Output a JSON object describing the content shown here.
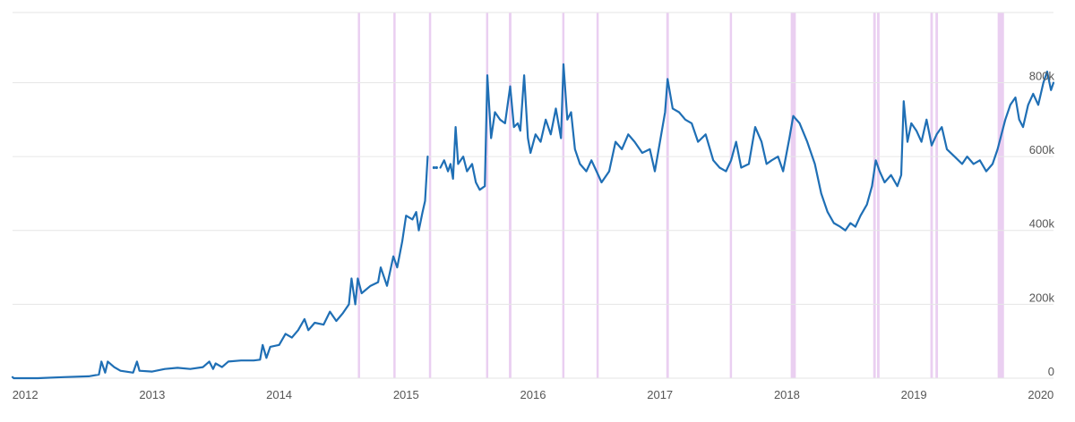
{
  "chart_data": {
    "type": "line",
    "title": "",
    "xlabel": "",
    "ylabel": "",
    "x_ticks": [
      "2012",
      "2013",
      "2014",
      "2015",
      "2016",
      "2017",
      "2018",
      "2019",
      "2020"
    ],
    "y_ticks": [
      "0",
      "200k",
      "400k",
      "600k",
      "800k"
    ],
    "y_tick_values": [
      0,
      200000,
      400000,
      600000,
      800000
    ],
    "xlim": [
      2011.9,
      2020.1
    ],
    "ylim": [
      0,
      990000
    ],
    "grid": "horizontal",
    "legend": "none",
    "colors": {
      "series": "#1f6fb5",
      "event_band": "#d9a8e6",
      "grid": "#e6e6e6"
    },
    "event_bands": [
      [
        2014.62,
        2014.63
      ],
      [
        2014.9,
        2014.91
      ],
      [
        2015.18,
        2015.19
      ],
      [
        2015.63,
        2015.64
      ],
      [
        2015.81,
        2015.83
      ],
      [
        2016.23,
        2016.24
      ],
      [
        2016.5,
        2016.51
      ],
      [
        2017.05,
        2017.07
      ],
      [
        2017.55,
        2017.56
      ],
      [
        2018.03,
        2018.07
      ],
      [
        2018.68,
        2018.7
      ],
      [
        2018.71,
        2018.73
      ],
      [
        2019.13,
        2019.15
      ],
      [
        2019.17,
        2019.19
      ],
      [
        2019.66,
        2019.71
      ]
    ],
    "series": [
      {
        "segments": [
          [
            [
              2011.9,
              3000
            ],
            [
              2011.91,
              0
            ],
            [
              2012.1,
              0
            ],
            [
              2012.3,
              3000
            ],
            [
              2012.5,
              5000
            ],
            [
              2012.58,
              10000
            ],
            [
              2012.6,
              45000
            ],
            [
              2012.63,
              15000
            ],
            [
              2012.65,
              45000
            ],
            [
              2012.7,
              30000
            ],
            [
              2012.75,
              20000
            ],
            [
              2012.85,
              15000
            ],
            [
              2012.88,
              45000
            ],
            [
              2012.9,
              20000
            ],
            [
              2013.0,
              18000
            ],
            [
              2013.1,
              25000
            ],
            [
              2013.2,
              28000
            ],
            [
              2013.3,
              25000
            ],
            [
              2013.4,
              30000
            ],
            [
              2013.45,
              45000
            ],
            [
              2013.48,
              25000
            ],
            [
              2013.5,
              40000
            ],
            [
              2013.55,
              30000
            ],
            [
              2013.6,
              45000
            ],
            [
              2013.7,
              48000
            ],
            [
              2013.8,
              48000
            ],
            [
              2013.85,
              50000
            ],
            [
              2013.87,
              90000
            ],
            [
              2013.9,
              55000
            ],
            [
              2013.93,
              85000
            ],
            [
              2014.0,
              90000
            ],
            [
              2014.05,
              120000
            ],
            [
              2014.1,
              110000
            ],
            [
              2014.15,
              130000
            ],
            [
              2014.2,
              160000
            ],
            [
              2014.23,
              130000
            ],
            [
              2014.28,
              150000
            ],
            [
              2014.35,
              145000
            ],
            [
              2014.4,
              180000
            ],
            [
              2014.45,
              155000
            ],
            [
              2014.5,
              175000
            ],
            [
              2014.55,
              200000
            ],
            [
              2014.57,
              270000
            ],
            [
              2014.6,
              200000
            ],
            [
              2014.62,
              270000
            ],
            [
              2014.65,
              230000
            ],
            [
              2014.72,
              250000
            ],
            [
              2014.78,
              260000
            ],
            [
              2014.8,
              300000
            ],
            [
              2014.85,
              250000
            ],
            [
              2014.9,
              330000
            ],
            [
              2014.93,
              300000
            ],
            [
              2014.97,
              370000
            ],
            [
              2015.0,
              440000
            ],
            [
              2015.05,
              430000
            ],
            [
              2015.08,
              450000
            ],
            [
              2015.1,
              400000
            ],
            [
              2015.13,
              450000
            ],
            [
              2015.15,
              480000
            ],
            [
              2015.17,
              600000
            ]
          ],
          [
            [
              2015.27,
              570000
            ],
            [
              2015.3,
              590000
            ],
            [
              2015.33,
              560000
            ],
            [
              2015.35,
              580000
            ],
            [
              2015.37,
              540000
            ],
            [
              2015.39,
              680000
            ],
            [
              2015.41,
              580000
            ],
            [
              2015.45,
              600000
            ],
            [
              2015.48,
              560000
            ],
            [
              2015.52,
              580000
            ],
            [
              2015.55,
              530000
            ],
            [
              2015.58,
              510000
            ],
            [
              2015.62,
              520000
            ],
            [
              2015.64,
              820000
            ],
            [
              2015.67,
              650000
            ],
            [
              2015.7,
              720000
            ],
            [
              2015.74,
              700000
            ],
            [
              2015.78,
              690000
            ],
            [
              2015.82,
              790000
            ],
            [
              2015.85,
              680000
            ],
            [
              2015.88,
              690000
            ],
            [
              2015.9,
              670000
            ],
            [
              2015.93,
              820000
            ],
            [
              2015.96,
              650000
            ],
            [
              2015.98,
              610000
            ],
            [
              2016.02,
              660000
            ],
            [
              2016.06,
              640000
            ],
            [
              2016.1,
              700000
            ],
            [
              2016.14,
              660000
            ],
            [
              2016.18,
              730000
            ],
            [
              2016.22,
              650000
            ],
            [
              2016.24,
              850000
            ],
            [
              2016.27,
              700000
            ],
            [
              2016.3,
              720000
            ],
            [
              2016.33,
              620000
            ],
            [
              2016.37,
              580000
            ],
            [
              2016.42,
              560000
            ],
            [
              2016.46,
              590000
            ],
            [
              2016.5,
              560000
            ],
            [
              2016.54,
              530000
            ],
            [
              2016.6,
              560000
            ],
            [
              2016.65,
              640000
            ],
            [
              2016.7,
              620000
            ],
            [
              2016.75,
              660000
            ],
            [
              2016.8,
              640000
            ],
            [
              2016.86,
              610000
            ],
            [
              2016.92,
              620000
            ],
            [
              2016.96,
              560000
            ],
            [
              2017.0,
              640000
            ],
            [
              2017.04,
              720000
            ],
            [
              2017.06,
              810000
            ],
            [
              2017.1,
              730000
            ],
            [
              2017.15,
              720000
            ],
            [
              2017.2,
              700000
            ],
            [
              2017.25,
              690000
            ],
            [
              2017.3,
              640000
            ],
            [
              2017.36,
              660000
            ],
            [
              2017.42,
              590000
            ],
            [
              2017.47,
              570000
            ],
            [
              2017.52,
              560000
            ],
            [
              2017.56,
              590000
            ],
            [
              2017.6,
              640000
            ],
            [
              2017.64,
              570000
            ],
            [
              2017.7,
              580000
            ],
            [
              2017.75,
              680000
            ],
            [
              2017.8,
              640000
            ],
            [
              2017.84,
              580000
            ],
            [
              2017.88,
              590000
            ],
            [
              2017.93,
              600000
            ],
            [
              2017.97,
              560000
            ],
            [
              2018.02,
              650000
            ],
            [
              2018.05,
              710000
            ],
            [
              2018.1,
              690000
            ],
            [
              2018.16,
              640000
            ],
            [
              2018.22,
              580000
            ],
            [
              2018.27,
              500000
            ],
            [
              2018.32,
              450000
            ],
            [
              2018.37,
              420000
            ],
            [
              2018.42,
              410000
            ],
            [
              2018.46,
              400000
            ],
            [
              2018.5,
              420000
            ],
            [
              2018.54,
              410000
            ],
            [
              2018.58,
              440000
            ],
            [
              2018.63,
              470000
            ],
            [
              2018.67,
              520000
            ],
            [
              2018.7,
              590000
            ],
            [
              2018.73,
              560000
            ],
            [
              2018.77,
              530000
            ],
            [
              2018.82,
              550000
            ],
            [
              2018.87,
              520000
            ],
            [
              2018.9,
              550000
            ],
            [
              2018.92,
              750000
            ],
            [
              2018.95,
              640000
            ],
            [
              2018.98,
              690000
            ],
            [
              2019.02,
              670000
            ],
            [
              2019.06,
              640000
            ],
            [
              2019.1,
              700000
            ],
            [
              2019.14,
              630000
            ],
            [
              2019.18,
              660000
            ],
            [
              2019.22,
              680000
            ],
            [
              2019.26,
              620000
            ],
            [
              2019.32,
              600000
            ],
            [
              2019.38,
              580000
            ],
            [
              2019.42,
              600000
            ],
            [
              2019.47,
              580000
            ],
            [
              2019.52,
              590000
            ],
            [
              2019.57,
              560000
            ],
            [
              2019.62,
              580000
            ],
            [
              2019.66,
              620000
            ],
            [
              2019.69,
              660000
            ],
            [
              2019.72,
              700000
            ],
            [
              2019.76,
              740000
            ],
            [
              2019.8,
              760000
            ],
            [
              2019.83,
              700000
            ],
            [
              2019.86,
              680000
            ],
            [
              2019.9,
              740000
            ],
            [
              2019.94,
              770000
            ],
            [
              2019.98,
              740000
            ],
            [
              2020.02,
              800000
            ],
            [
              2020.05,
              830000
            ],
            [
              2020.08,
              780000
            ],
            [
              2020.1,
              800000
            ]
          ]
        ]
      }
    ]
  }
}
